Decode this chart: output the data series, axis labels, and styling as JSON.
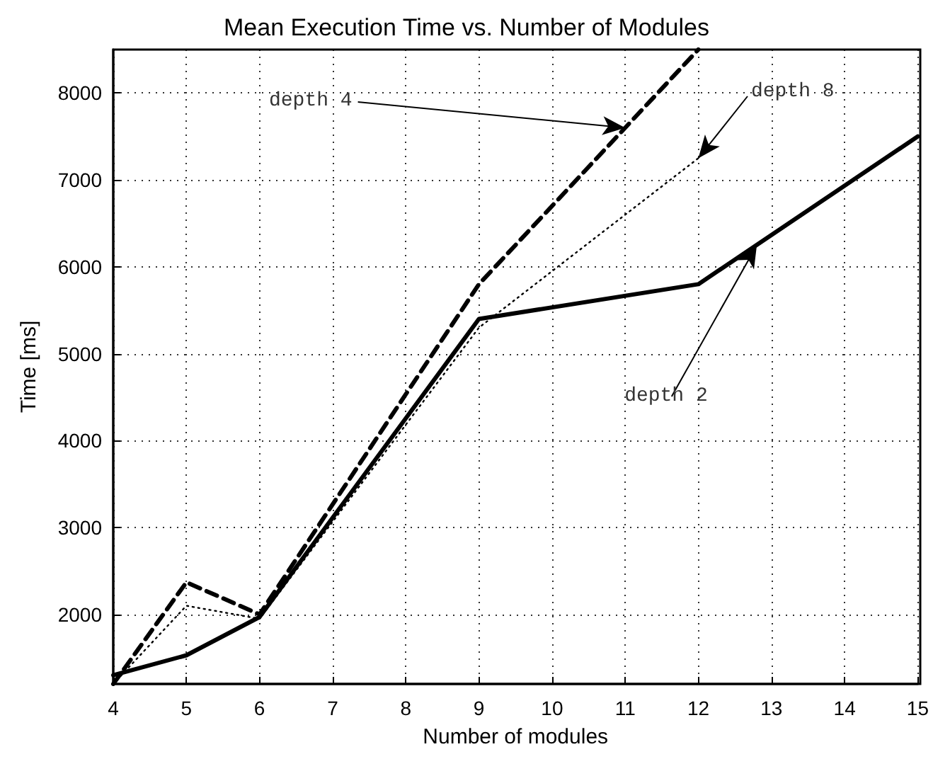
{
  "chart_data": {
    "type": "line",
    "title": "Mean Execution Time vs. Number of Modules",
    "xlabel": "Number of modules",
    "ylabel": "Time [ms]",
    "x": [
      4,
      5,
      6,
      9,
      12,
      15
    ],
    "series": [
      {
        "color": "#000000",
        "line_style": "solid",
        "values": [
          1300,
          1530,
          1970,
          5400,
          5800,
          7500
        ]
      },
      {
        "color": "#000000",
        "line_style": "dashed",
        "x": [
          4,
          5,
          6,
          9,
          12
        ],
        "values": [
          1200,
          2370,
          2000,
          5800,
          8500
        ]
      },
      {
        "color": "#000000",
        "line_style": "dotted",
        "x": [
          4,
          5,
          6,
          9,
          12
        ],
        "values": [
          1200,
          2100,
          1950,
          5300,
          7250
        ]
      }
    ],
    "annotations": [
      {
        "text": "depth 2",
        "x": 12.8,
        "y": 6250
      },
      {
        "text": "depth 4",
        "x": 11,
        "y": 7600
      },
      {
        "text": "depth 8",
        "x": 12,
        "y": 7250
      }
    ],
    "xlim": [
      4,
      15
    ],
    "xticks": [
      4,
      5,
      6,
      7,
      8,
      9,
      10,
      11,
      12,
      13,
      14,
      15
    ],
    "ylim": [
      1200,
      8500
    ],
    "yticks": [
      2000,
      3000,
      4000,
      5000,
      6000,
      7000,
      8000
    ],
    "grid": true,
    "legend": false,
    "marker": "none"
  }
}
